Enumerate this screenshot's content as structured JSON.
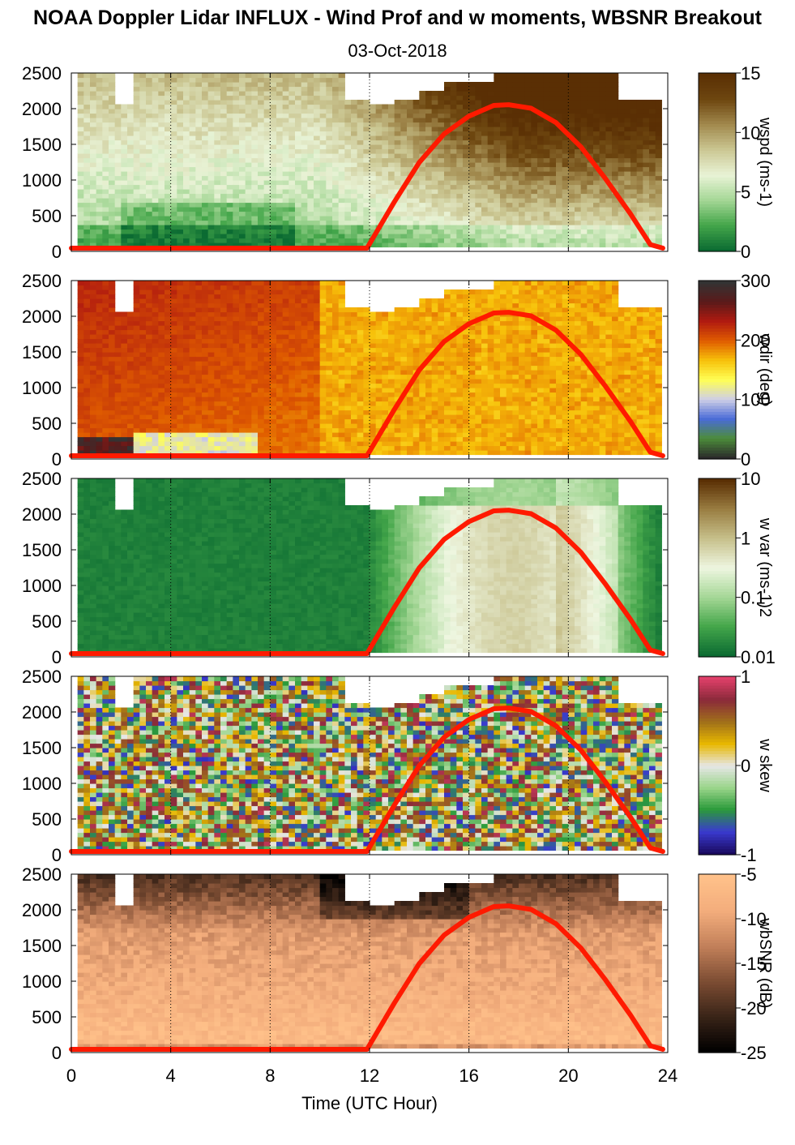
{
  "header": {
    "title": "NOAA Doppler Lidar INFLUX - Wind Prof and w moments, WBSNR Breakout",
    "date": "03-Oct-2018"
  },
  "chart_data": {
    "type": "heatmap",
    "xlabel": "Time (UTC Hour)",
    "xlim": [
      0,
      24
    ],
    "x_ticks": [
      "0",
      "4",
      "8",
      "12",
      "16",
      "20",
      "24"
    ],
    "vertical_dotted_lines_at_hours": [
      4,
      8,
      12,
      16,
      20,
      24
    ],
    "ylim": [
      0,
      2500
    ],
    "y_ticks": [
      "0",
      "500",
      "1000",
      "1500",
      "2000",
      "2500"
    ],
    "overlay": {
      "description": "red solar-elevation style curve",
      "color": "#ff1a00",
      "points": [
        [
          0,
          0
        ],
        [
          11.9,
          0
        ],
        [
          13,
          650
        ],
        [
          14,
          1200
        ],
        [
          15,
          1600
        ],
        [
          16,
          1850
        ],
        [
          17,
          2000
        ],
        [
          17.6,
          2010
        ],
        [
          18.5,
          1960
        ],
        [
          19.5,
          1760
        ],
        [
          20.5,
          1420
        ],
        [
          21.5,
          970
        ],
        [
          22.5,
          480
        ],
        [
          23.3,
          50
        ],
        [
          23.8,
          0
        ]
      ]
    },
    "panels": [
      {
        "id": "wspd",
        "colorbar_label": "wspd (ms-1)",
        "colorbar_ticks": [
          "0",
          "5",
          "10",
          "15"
        ],
        "colorbar_colors": [
          "#0b6b32",
          "#44a64a",
          "#a5d796",
          "#e9f3d6",
          "#cbc793",
          "#a28a4e",
          "#6e4710",
          "#5a2f04"
        ],
        "description": "wind speed increasing in afternoon aloft",
        "cell_rule": "wspd"
      },
      {
        "id": "wdir",
        "colorbar_label": "wdir (deg)",
        "colorbar_ticks": [
          "0",
          "100",
          "200",
          "300"
        ],
        "colorbar_colors": [
          "#2b2b2b",
          "#4c8c3a",
          "#4a6bd8",
          "#cfcfe6",
          "#ffff55",
          "#f7c10a",
          "#e05c00",
          "#b01a10",
          "#5a1a1a",
          "#333333"
        ],
        "description": "mostly southerly-southwesterly, northerly near surface early",
        "cell_rule": "wdir"
      },
      {
        "id": "wvar",
        "colorbar_label": "w var (ms-1)2",
        "colorbar_ticks": [
          "0.01",
          "0.1",
          "1",
          "10"
        ],
        "colorbar_colors": [
          "#0b6b32",
          "#44a64a",
          "#a5d796",
          "#eef6e0",
          "#c7c08b",
          "#9a7e42",
          "#5a2f04"
        ],
        "description": "low variance at night, convective mixing in afternoon",
        "cell_rule": "wvar"
      },
      {
        "id": "wskew",
        "colorbar_label": "w skew",
        "colorbar_ticks": [
          "-1",
          "0",
          "1"
        ],
        "colorbar_colors": [
          "#1a0a60",
          "#3a3ad0",
          "#2a9a3a",
          "#9ad58a",
          "#e6e6e6",
          "#e8b800",
          "#a0701a",
          "#8a2a3a",
          "#e0406a"
        ],
        "description": "noisy skewness field",
        "cell_rule": "wskew"
      },
      {
        "id": "wbsnr",
        "colorbar_label": "wbSNR (dB)",
        "colorbar_ticks": [
          "-25",
          "-20",
          "-15",
          "-10",
          "-5"
        ],
        "colorbar_colors": [
          "#000000",
          "#3a2418",
          "#7d4d33",
          "#c2805a",
          "#f3ad7c",
          "#ffc18a"
        ],
        "description": "high SNR near surface, low SNR aloft",
        "cell_rule": "wbsnr"
      }
    ]
  }
}
